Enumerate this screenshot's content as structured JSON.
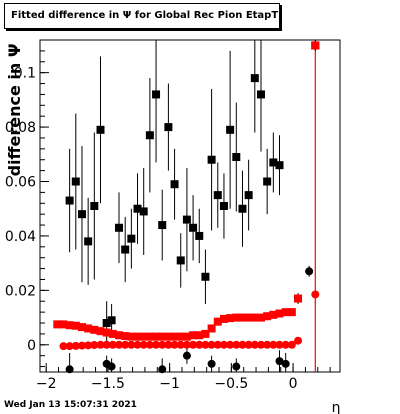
{
  "chart_data": {
    "type": "scatter",
    "title": "Fitted difference in  Ψ  for Global Rec Pion EtapT",
    "xlabel": "η",
    "ylabel": "difference in  Ψ",
    "xlim": [
      -2.05,
      0.38
    ],
    "ylim": [
      -0.01,
      0.112
    ],
    "x_ticks": [
      -2,
      -1.5,
      -1,
      -0.5,
      0
    ],
    "x_tick_labels": [
      "−2",
      "−1.5",
      "−1",
      "−0.5",
      "0"
    ],
    "y_ticks": [
      0,
      0.02,
      0.04,
      0.06,
      0.08,
      0.1
    ],
    "y_tick_labels": [
      "0",
      "0.02",
      "0.04",
      "0.06",
      "0.08",
      "0.1"
    ],
    "grid": false,
    "series": [
      {
        "color": "#000000",
        "marker": "square",
        "points": [
          {
            "x": -1.81,
            "y": 0.053,
            "err": 0.019
          },
          {
            "x": -1.76,
            "y": 0.06,
            "err": 0.025
          },
          {
            "x": -1.71,
            "y": 0.048,
            "err": 0.025
          },
          {
            "x": -1.66,
            "y": 0.038,
            "err": 0.016
          },
          {
            "x": -1.61,
            "y": 0.051,
            "err": 0.027
          },
          {
            "x": -1.56,
            "y": 0.079,
            "err": 0.027
          },
          {
            "x": -1.51,
            "y": 0.008,
            "err": 0.008
          },
          {
            "x": -1.47,
            "y": 0.009,
            "err": 0.006
          },
          {
            "x": -1.41,
            "y": 0.043,
            "err": 0.013
          },
          {
            "x": -1.36,
            "y": 0.035,
            "err": 0.012
          },
          {
            "x": -1.31,
            "y": 0.039,
            "err": 0.011
          },
          {
            "x": -1.26,
            "y": 0.05,
            "err": 0.013
          },
          {
            "x": -1.21,
            "y": 0.049,
            "err": 0.016
          },
          {
            "x": -1.16,
            "y": 0.077,
            "err": 0.021
          },
          {
            "x": -1.11,
            "y": 0.092,
            "err": 0.025
          },
          {
            "x": -1.06,
            "y": 0.044,
            "err": 0.013
          },
          {
            "x": -1.01,
            "y": 0.08,
            "err": 0.016
          },
          {
            "x": -0.96,
            "y": 0.059,
            "err": 0.013
          },
          {
            "x": -0.91,
            "y": 0.031,
            "err": 0.01
          },
          {
            "x": -0.86,
            "y": 0.046,
            "err": 0.019
          },
          {
            "x": -0.81,
            "y": 0.043,
            "err": 0.012
          },
          {
            "x": -0.76,
            "y": 0.04,
            "err": 0.01
          },
          {
            "x": -0.71,
            "y": 0.025,
            "err": 0.01
          },
          {
            "x": -0.66,
            "y": 0.068,
            "err": 0.026
          },
          {
            "x": -0.61,
            "y": 0.055,
            "err": 0.012
          },
          {
            "x": -0.56,
            "y": 0.051,
            "err": 0.012
          },
          {
            "x": -0.51,
            "y": 0.079,
            "err": 0.029
          },
          {
            "x": -0.46,
            "y": 0.069,
            "err": 0.02
          },
          {
            "x": -0.41,
            "y": 0.05,
            "err": 0.014
          },
          {
            "x": -0.36,
            "y": 0.055,
            "err": 0.013
          },
          {
            "x": -0.31,
            "y": 0.098,
            "err": 0.02
          },
          {
            "x": -0.26,
            "y": 0.092,
            "err": 0.021
          },
          {
            "x": -0.21,
            "y": 0.06,
            "err": 0.012
          },
          {
            "x": -0.16,
            "y": 0.067,
            "err": 0.011
          },
          {
            "x": -0.11,
            "y": 0.066,
            "err": 0.011
          },
          {
            "x": 0.04,
            "y": 0.017,
            "err": 0.002
          },
          {
            "x": 0.18,
            "y": 0.11,
            "err": 0.002
          }
        ]
      },
      {
        "color": "#000000",
        "marker": "circle",
        "points": [
          {
            "x": -1.81,
            "y": -0.009,
            "err": 0.006
          },
          {
            "x": -1.51,
            "y": -0.007,
            "err": 0.003
          },
          {
            "x": -1.47,
            "y": -0.008,
            "err": 0.003
          },
          {
            "x": -1.06,
            "y": -0.009,
            "err": 0.004
          },
          {
            "x": -0.86,
            "y": -0.004,
            "err": 0.003
          },
          {
            "x": -0.66,
            "y": -0.007,
            "err": 0.003
          },
          {
            "x": -0.46,
            "y": -0.008,
            "err": 0.003
          },
          {
            "x": -0.11,
            "y": -0.006,
            "err": 0.004
          },
          {
            "x": -0.06,
            "y": -0.007,
            "err": 0.004
          },
          {
            "x": 0.13,
            "y": 0.027,
            "err": 0.002
          }
        ]
      },
      {
        "color": "#ff0000",
        "marker": "square",
        "points": [
          {
            "x": -1.91,
            "y": 0.0075
          },
          {
            "x": -1.86,
            "y": 0.0075
          },
          {
            "x": -1.81,
            "y": 0.0072
          },
          {
            "x": -1.76,
            "y": 0.007
          },
          {
            "x": -1.71,
            "y": 0.0065
          },
          {
            "x": -1.66,
            "y": 0.006
          },
          {
            "x": -1.61,
            "y": 0.0055
          },
          {
            "x": -1.56,
            "y": 0.005
          },
          {
            "x": -1.51,
            "y": 0.0045
          },
          {
            "x": -1.46,
            "y": 0.004
          },
          {
            "x": -1.41,
            "y": 0.0035
          },
          {
            "x": -1.36,
            "y": 0.0032
          },
          {
            "x": -1.31,
            "y": 0.003
          },
          {
            "x": -1.26,
            "y": 0.003
          },
          {
            "x": -1.21,
            "y": 0.003
          },
          {
            "x": -1.16,
            "y": 0.003
          },
          {
            "x": -1.11,
            "y": 0.003
          },
          {
            "x": -1.06,
            "y": 0.003
          },
          {
            "x": -1.01,
            "y": 0.003
          },
          {
            "x": -0.96,
            "y": 0.003
          },
          {
            "x": -0.91,
            "y": 0.003
          },
          {
            "x": -0.86,
            "y": 0.003
          },
          {
            "x": -0.81,
            "y": 0.0035
          },
          {
            "x": -0.76,
            "y": 0.0035
          },
          {
            "x": -0.71,
            "y": 0.004
          },
          {
            "x": -0.66,
            "y": 0.006
          },
          {
            "x": -0.61,
            "y": 0.0085
          },
          {
            "x": -0.56,
            "y": 0.0095
          },
          {
            "x": -0.51,
            "y": 0.0098
          },
          {
            "x": -0.46,
            "y": 0.01
          },
          {
            "x": -0.41,
            "y": 0.01
          },
          {
            "x": -0.36,
            "y": 0.01
          },
          {
            "x": -0.31,
            "y": 0.01
          },
          {
            "x": -0.26,
            "y": 0.01
          },
          {
            "x": -0.21,
            "y": 0.0105
          },
          {
            "x": -0.16,
            "y": 0.011
          },
          {
            "x": -0.11,
            "y": 0.0115
          },
          {
            "x": -0.06,
            "y": 0.012
          },
          {
            "x": -0.01,
            "y": 0.012
          },
          {
            "x": 0.04,
            "y": 0.017
          },
          {
            "x": 0.18,
            "y": 0.11
          }
        ]
      },
      {
        "color": "#ff0000",
        "marker": "circle",
        "points": [
          {
            "x": -1.86,
            "y": -0.0005
          },
          {
            "x": -1.81,
            "y": -0.0005
          },
          {
            "x": -1.76,
            "y": -0.0004
          },
          {
            "x": -1.71,
            "y": -0.0003
          },
          {
            "x": -1.66,
            "y": -0.0002
          },
          {
            "x": -1.61,
            "y": -0.0001
          },
          {
            "x": -1.56,
            "y": 0.0
          },
          {
            "x": -1.51,
            "y": 0.0
          },
          {
            "x": -1.46,
            "y": 0.0
          },
          {
            "x": -1.41,
            "y": 0.0
          },
          {
            "x": -1.36,
            "y": 0.0
          },
          {
            "x": -1.31,
            "y": 0.0
          },
          {
            "x": -1.26,
            "y": 0.0
          },
          {
            "x": -1.21,
            "y": 0.0
          },
          {
            "x": -1.16,
            "y": 0.0
          },
          {
            "x": -1.11,
            "y": 0.0
          },
          {
            "x": -1.06,
            "y": 0.0
          },
          {
            "x": -1.01,
            "y": 0.0
          },
          {
            "x": -0.96,
            "y": 0.0
          },
          {
            "x": -0.91,
            "y": 0.0
          },
          {
            "x": -0.86,
            "y": 0.0
          },
          {
            "x": -0.81,
            "y": 0.0
          },
          {
            "x": -0.76,
            "y": 0.0
          },
          {
            "x": -0.71,
            "y": 0.0
          },
          {
            "x": -0.66,
            "y": 0.0
          },
          {
            "x": -0.61,
            "y": 0.0
          },
          {
            "x": -0.56,
            "y": 0.0
          },
          {
            "x": -0.51,
            "y": 0.0
          },
          {
            "x": -0.46,
            "y": 0.0
          },
          {
            "x": -0.41,
            "y": 0.0
          },
          {
            "x": -0.36,
            "y": 0.0
          },
          {
            "x": -0.31,
            "y": 0.0
          },
          {
            "x": -0.26,
            "y": 0.0
          },
          {
            "x": -0.21,
            "y": 0.0
          },
          {
            "x": -0.16,
            "y": 0.0
          },
          {
            "x": -0.11,
            "y": 0.0
          },
          {
            "x": -0.06,
            "y": 0.0
          },
          {
            "x": -0.01,
            "y": 0.0
          },
          {
            "x": 0.04,
            "y": 0.0015
          },
          {
            "x": 0.18,
            "y": 0.0185
          }
        ]
      }
    ],
    "vertical_line": {
      "x": 0.18,
      "color": "#ff0000"
    }
  },
  "footer": {
    "timestamp": "Wed Jan 13 15:07:31 2021"
  }
}
